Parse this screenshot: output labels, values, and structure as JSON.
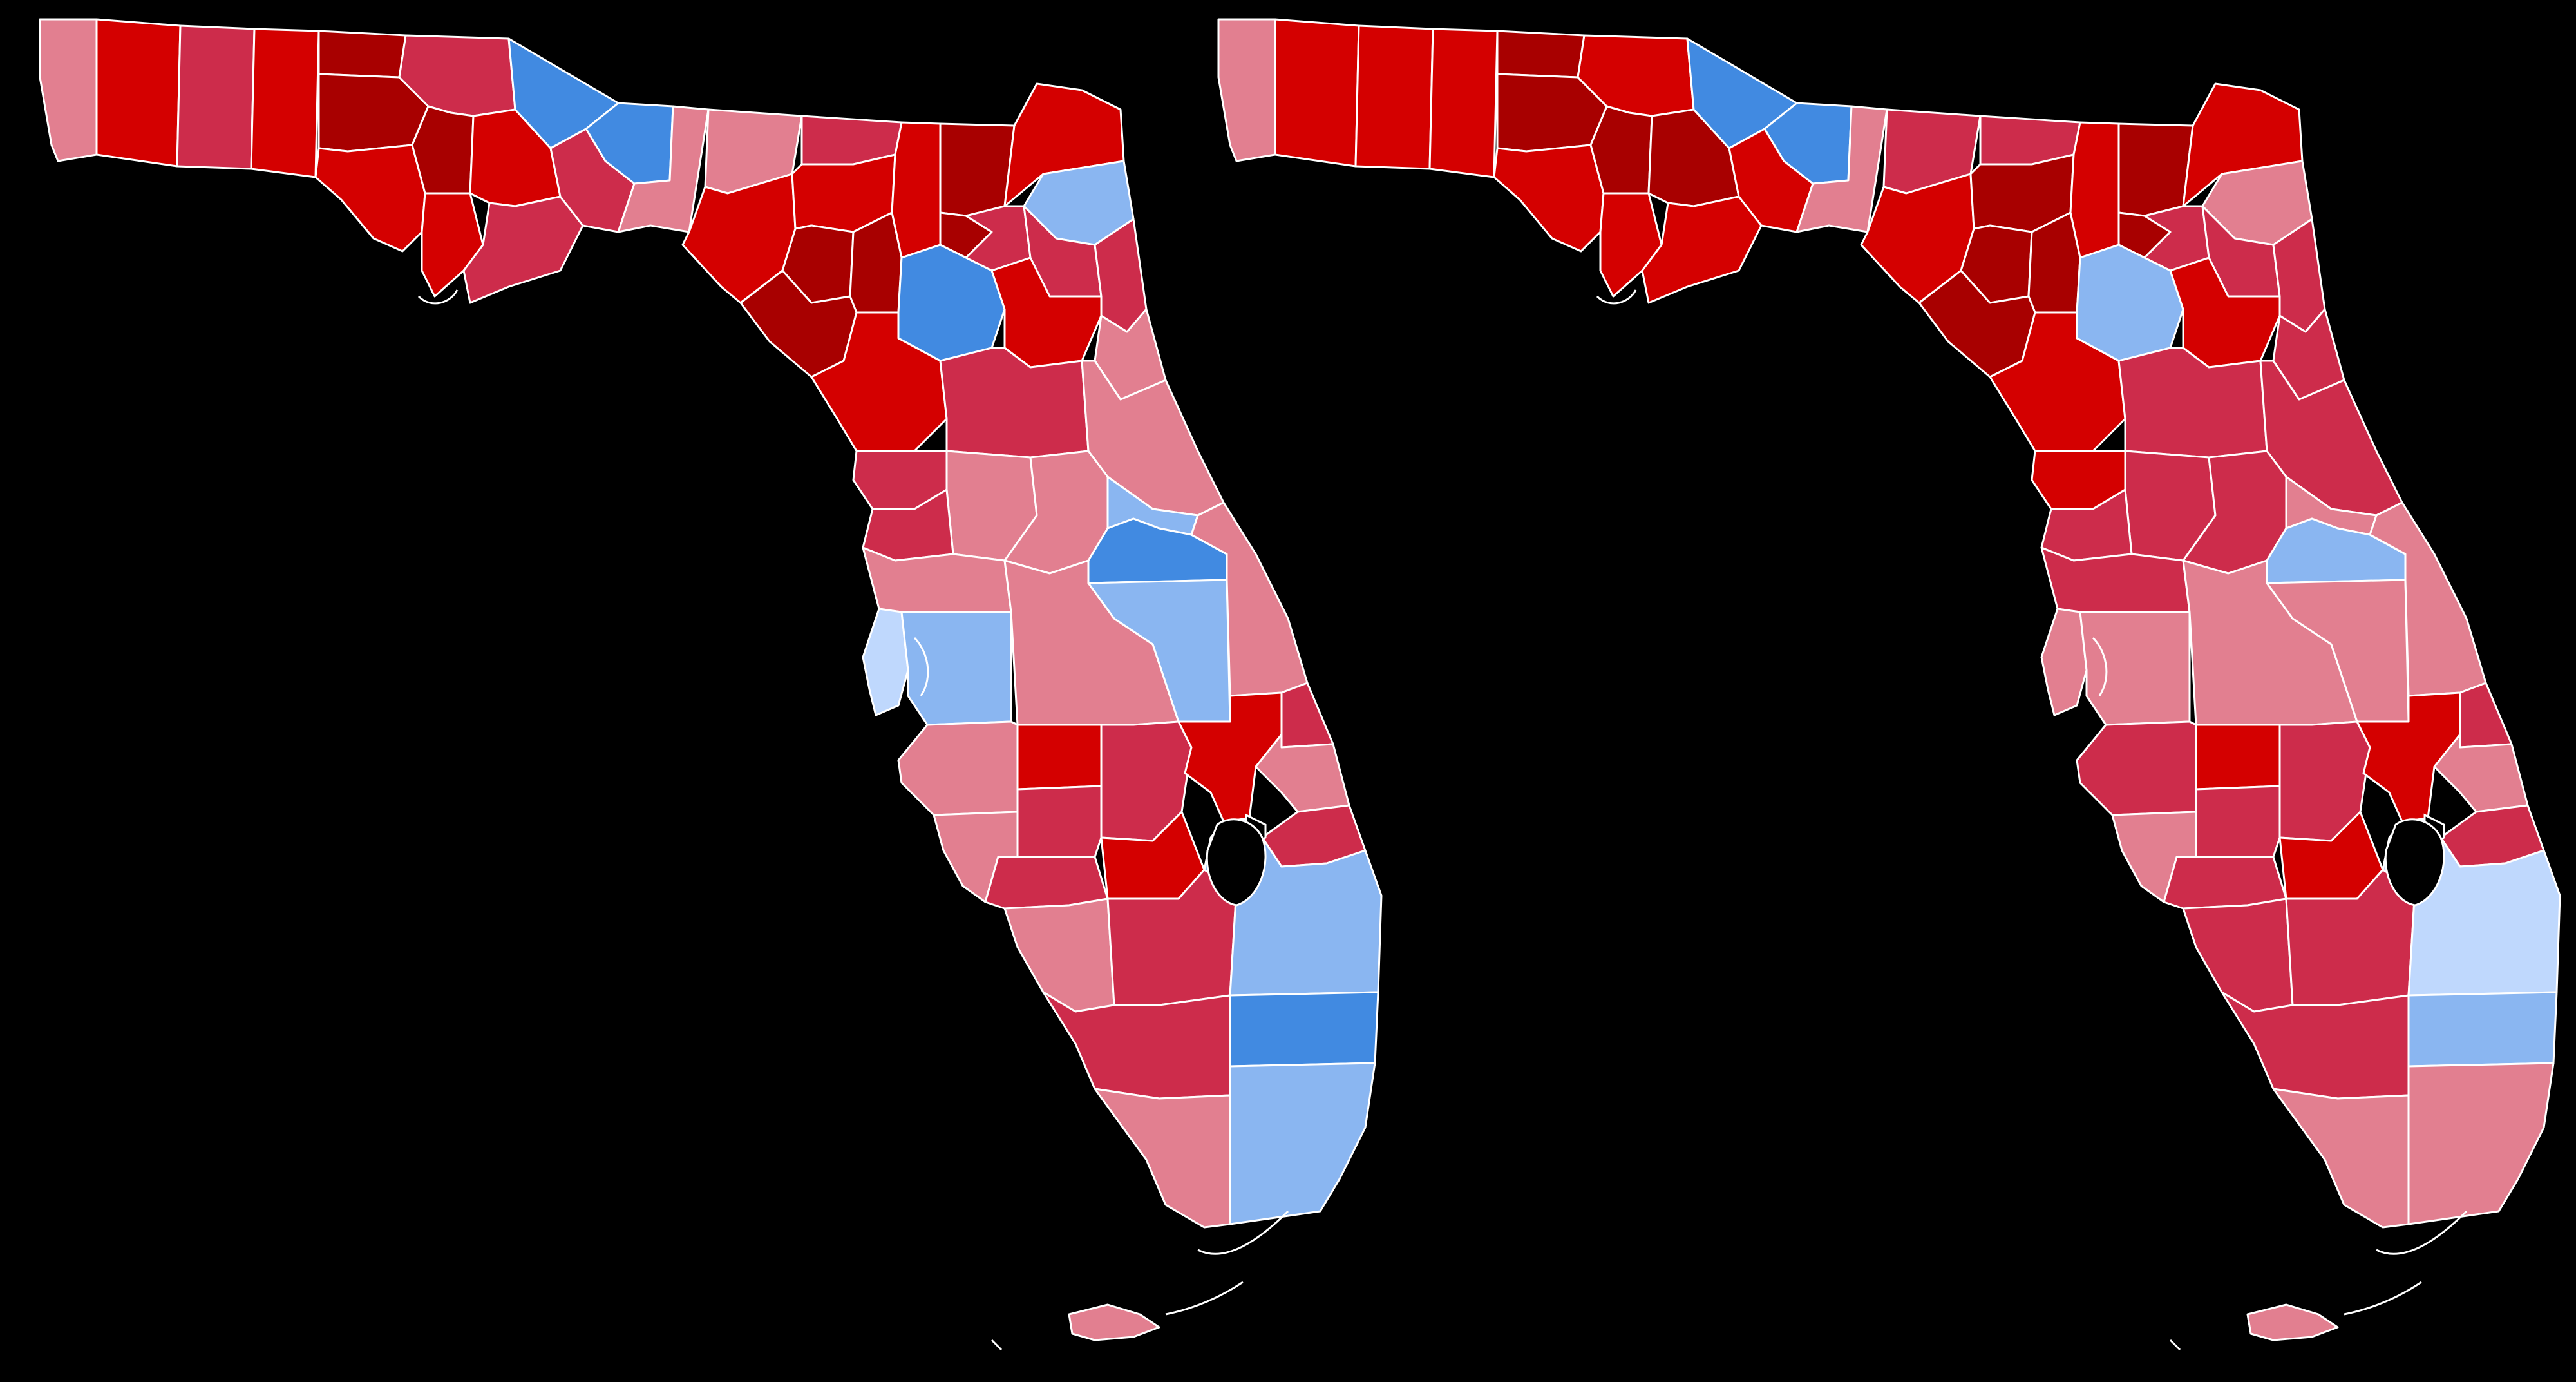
{
  "palette": {
    "background": "#000000",
    "county_border": "#ffffff",
    "r_darkest": "#a80000",
    "r_dark": "#d40000",
    "r_mid": "#cd2c4b",
    "r_light": "#e27f90",
    "d_dark": "#418ae1",
    "d_mid": "#8ab6f1",
    "d_light": "#bfd8fd"
  },
  "maps": [
    {
      "name": "florida-map-left",
      "counties": {
        "escambia": "r_light",
        "santa-rosa": "r_dark",
        "okaloosa": "r_mid",
        "walton": "r_dark",
        "holmes": "r_darkest",
        "washington": "r_darkest",
        "bay": "r_dark",
        "jackson": "r_mid",
        "calhoun": "r_darkest",
        "gulf": "r_dark",
        "liberty": "r_dark",
        "franklin": "r_mid",
        "gadsden": "d_dark",
        "leon": "d_dark",
        "wakulla": "r_mid",
        "jefferson": "r_light",
        "madison": "r_light",
        "taylor": "r_dark",
        "hamilton": "r_mid",
        "suwannee": "r_dark",
        "lafayette": "r_darkest",
        "dixie": "r_darkest",
        "columbia": "r_dark",
        "baker": "r_darkest",
        "union": "r_darkest",
        "nassau": "r_dark",
        "duval": "d_mid",
        "clay": "r_mid",
        "st-johns": "r_mid",
        "bradford": "r_mid",
        "gilchrist": "r_darkest",
        "alachua": "d_dark",
        "putnam": "r_dark",
        "flagler": "r_light",
        "levy": "r_dark",
        "marion": "r_mid",
        "volusia": "r_light",
        "citrus": "r_mid",
        "sumter": "r_light",
        "lake": "r_light",
        "seminole": "d_mid",
        "orange": "d_dark",
        "hernando": "r_mid",
        "pasco": "r_light",
        "pinellas": "d_light",
        "hillsborough": "d_mid",
        "polk": "r_light",
        "osceola": "d_mid",
        "brevard": "r_light",
        "manatee": "r_light",
        "hardee": "r_dark",
        "highlands": "r_mid",
        "okeechobee": "r_dark",
        "indian-river": "r_mid",
        "st-lucie": "r_light",
        "sarasota": "r_light",
        "desoto": "r_mid",
        "glades": "r_dark",
        "martin": "r_mid",
        "charlotte": "r_mid",
        "lee": "r_light",
        "hendry": "r_mid",
        "palm-beach": "d_mid",
        "broward": "d_dark",
        "collier": "r_mid",
        "monroe": "r_light",
        "miami-dade": "d_mid",
        "keys": "r_light"
      }
    },
    {
      "name": "florida-map-right",
      "counties": {
        "escambia": "r_light",
        "santa-rosa": "r_dark",
        "okaloosa": "r_dark",
        "walton": "r_dark",
        "holmes": "r_darkest",
        "washington": "r_darkest",
        "bay": "r_dark",
        "jackson": "r_dark",
        "calhoun": "r_darkest",
        "gulf": "r_dark",
        "liberty": "r_darkest",
        "franklin": "r_dark",
        "gadsden": "d_dark",
        "leon": "d_dark",
        "wakulla": "r_dark",
        "jefferson": "r_light",
        "madison": "r_mid",
        "taylor": "r_dark",
        "hamilton": "r_mid",
        "suwannee": "r_darkest",
        "lafayette": "r_darkest",
        "dixie": "r_darkest",
        "columbia": "r_dark",
        "baker": "r_darkest",
        "union": "r_darkest",
        "nassau": "r_dark",
        "duval": "r_light",
        "clay": "r_mid",
        "st-johns": "r_mid",
        "bradford": "r_mid",
        "gilchrist": "r_darkest",
        "alachua": "d_mid",
        "putnam": "r_dark",
        "flagler": "r_mid",
        "levy": "r_dark",
        "marion": "r_mid",
        "volusia": "r_mid",
        "citrus": "r_dark",
        "sumter": "r_mid",
        "lake": "r_mid",
        "seminole": "r_light",
        "orange": "d_mid",
        "hernando": "r_mid",
        "pasco": "r_mid",
        "pinellas": "r_light",
        "hillsborough": "r_light",
        "polk": "r_light",
        "osceola": "r_light",
        "brevard": "r_light",
        "manatee": "r_mid",
        "hardee": "r_dark",
        "highlands": "r_mid",
        "okeechobee": "r_dark",
        "indian-river": "r_mid",
        "st-lucie": "r_light",
        "sarasota": "r_light",
        "desoto": "r_mid",
        "glades": "r_dark",
        "martin": "r_mid",
        "charlotte": "r_mid",
        "lee": "r_mid",
        "hendry": "r_mid",
        "palm-beach": "d_light",
        "broward": "d_mid",
        "collier": "r_mid",
        "monroe": "r_light",
        "miami-dade": "r_light",
        "keys": "r_light"
      }
    }
  ]
}
